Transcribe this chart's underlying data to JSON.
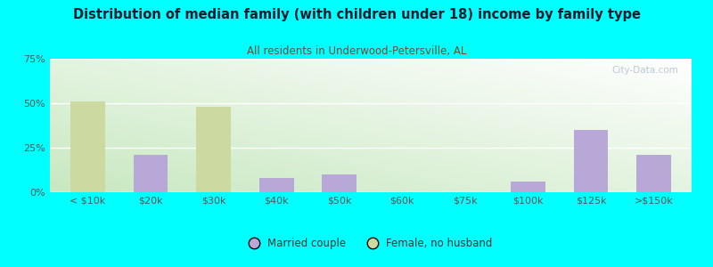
{
  "title": "Distribution of median family (with children under 18) income by family type",
  "subtitle": "All residents in Underwood-Petersville, AL",
  "categories": [
    "< $10k",
    "$20k",
    "$30k",
    "$40k",
    "$50k",
    "$60k",
    "$75k",
    "$100k",
    "$125k",
    ">$150k"
  ],
  "married_couple": [
    0,
    21,
    0,
    8,
    10,
    0,
    0,
    6,
    35,
    21
  ],
  "female_no_husband": [
    51,
    0,
    48,
    0,
    0,
    0,
    0,
    0,
    0,
    0
  ],
  "married_color": "#b8a8d8",
  "female_color": "#ccd9a0",
  "background_color": "#00ffff",
  "plot_bg_top_right": "#ffffff",
  "plot_bg_bottom_left": "#c8e8c0",
  "ylim": [
    0,
    75
  ],
  "yticks": [
    0,
    25,
    50,
    75
  ],
  "ytick_labels": [
    "0%",
    "25%",
    "50%",
    "75%"
  ],
  "bar_width": 0.55,
  "legend_married": "Married couple",
  "legend_female": "Female, no husband",
  "watermark": "City-Data.com"
}
